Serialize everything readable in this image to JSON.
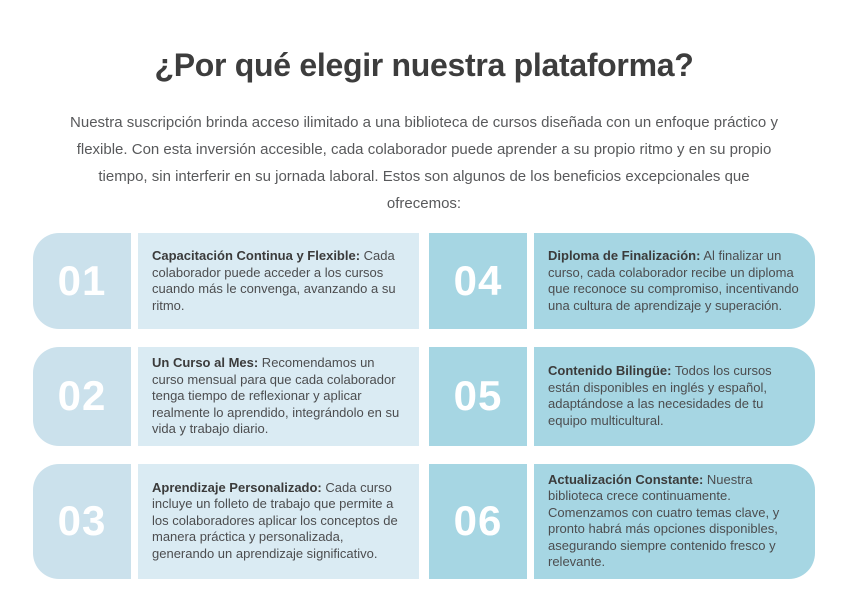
{
  "colors": {
    "background": "#ffffff",
    "heading_text": "#3d3d3d",
    "body_text": "#58595b",
    "card_title_text": "#3b3b3b",
    "card_body_text": "#4c4d4f",
    "number_text": "#ffffff",
    "left_number_bg": "#cbe1ec",
    "left_text_bg": "#daebf3",
    "right_number_bg": "#a6d6e3",
    "right_text_bg": "#a6d6e3"
  },
  "section": {
    "title": "¿Por qué elegir nuestra plataforma?",
    "intro": "Nuestra suscripción brinda acceso ilimitado a una biblioteca de cursos diseñada con un enfoque práctico y flexible. Con esta inversión accesible, cada colaborador puede aprender a su propio ritmo y en su propio tiempo, sin interferir en su jornada laboral. Estos son algunos de los beneficios excepcionales que ofrecemos:"
  },
  "benefits": [
    {
      "number": "01",
      "column": "left",
      "title": "Capacitación Continua y Flexible:",
      "description": "Cada colaborador puede acceder a los cursos cuando más le convenga, avanzando a su ritmo."
    },
    {
      "number": "02",
      "column": "left",
      "title": "Un Curso al Mes:",
      "description": "Recomendamos un curso mensual para que cada colaborador tenga tiempo de reflexionar y aplicar realmente lo aprendido, integrándolo en su vida y trabajo diario."
    },
    {
      "number": "03",
      "column": "left",
      "title": "Aprendizaje Personalizado:",
      "description": "Cada curso incluye un folleto de trabajo que permite a los colaboradores aplicar los conceptos de manera práctica y personalizada, generando un aprendizaje significativo."
    },
    {
      "number": "04",
      "column": "right",
      "title": "Diploma de Finalización:",
      "description": "Al finalizar un curso, cada colaborador recibe un diploma que reconoce su compromiso, incentivando una cultura de aprendizaje y superación."
    },
    {
      "number": "05",
      "column": "right",
      "title": "Contenido Bilingüe:",
      "description": "Todos los cursos están disponibles en inglés y español, adaptándose a las necesidades de tu equipo multicultural."
    },
    {
      "number": "06",
      "column": "right",
      "title": "Actualización Constante:",
      "description": "Nuestra biblioteca crece continuamente. Comenzamos con cuatro temas clave, y pronto habrá más opciones disponibles, asegurando siempre contenido fresco y relevante."
    }
  ]
}
